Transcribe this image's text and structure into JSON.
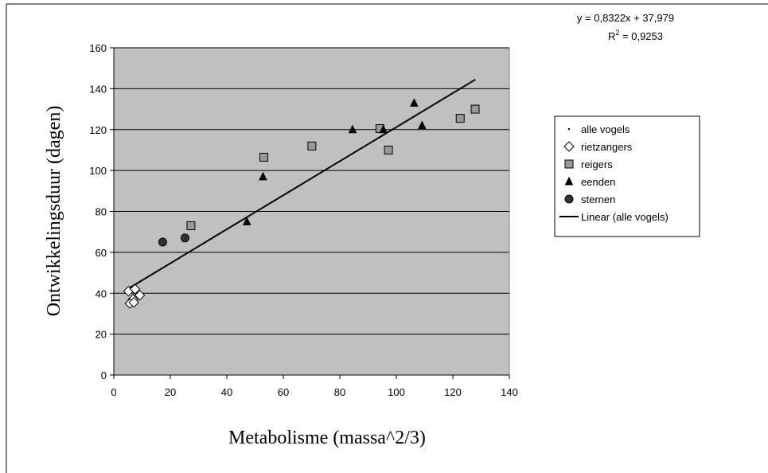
{
  "chart_data": {
    "type": "scatter",
    "xlabel": "Metabolisme (massa^2/3)",
    "ylabel": "Ontwikkelingsduur (dagen)",
    "xlim": [
      0,
      140
    ],
    "ylim": [
      0,
      160
    ],
    "x_ticks": [
      "0",
      "20",
      "40",
      "60",
      "80",
      "100",
      "120",
      "140"
    ],
    "y_ticks": [
      "0",
      "20",
      "40",
      "60",
      "80",
      "100",
      "120",
      "140",
      "160"
    ],
    "grid": "horizontal",
    "plot_background": "#c0c0c0",
    "legend_position": "right",
    "equation": "y = 0,8322x + 37,979",
    "r_squared_prefix": "R",
    "r_squared_exponent": "2",
    "r_squared_value": " = 0,9253",
    "trendline": {
      "name": "Linear (alle vogels)",
      "slope": 0.8322,
      "intercept": 37.979,
      "x_range": [
        5,
        128
      ]
    },
    "series": [
      {
        "name": "alle vogels",
        "marker": "dot",
        "color": "#000000",
        "points": []
      },
      {
        "name": "rietzangers",
        "marker": "diamond",
        "color": "#ffffff",
        "points": [
          [
            5.2,
            41
          ],
          [
            7.5,
            42
          ],
          [
            9.2,
            39
          ],
          [
            6.8,
            37
          ],
          [
            5.7,
            35
          ],
          [
            7.1,
            35.5
          ]
        ]
      },
      {
        "name": "reigers",
        "marker": "square",
        "color": "#999999",
        "points": [
          [
            27.3,
            73
          ],
          [
            53.1,
            106.5
          ],
          [
            70.1,
            112
          ],
          [
            94.2,
            120.5
          ],
          [
            97.2,
            110
          ],
          [
            122.6,
            125.5
          ],
          [
            127.9,
            130
          ]
        ]
      },
      {
        "name": "eenden",
        "marker": "triangle",
        "color": "#000000",
        "points": [
          [
            47.1,
            75
          ],
          [
            52.8,
            97
          ],
          [
            84.5,
            120
          ],
          [
            95.4,
            120
          ],
          [
            106.3,
            133
          ],
          [
            109.1,
            122
          ]
        ]
      },
      {
        "name": "sternen",
        "marker": "circle",
        "color": "#333333",
        "points": [
          [
            17.3,
            65
          ],
          [
            25.2,
            67
          ]
        ]
      }
    ]
  }
}
